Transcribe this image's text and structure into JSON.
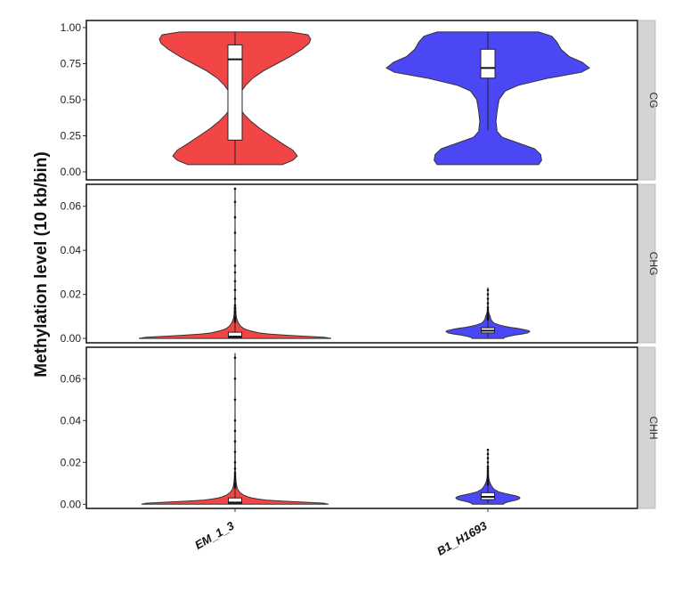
{
  "chart_data": {
    "type": "violin",
    "ylabel": "Methylation level (10 kb/bin)",
    "categories": [
      "EM_1_3",
      "B1_H1693"
    ],
    "colors": {
      "EM_1_3": "#f24646",
      "B1_H1693": "#4b47f5"
    },
    "facets": [
      {
        "name": "CG",
        "ylim": [
          0,
          1.0
        ],
        "yticks": [
          "0.00",
          "0.25",
          "0.50",
          "0.75",
          "1.00"
        ],
        "series": [
          {
            "name": "EM_1_3",
            "box": {
              "q1": 0.22,
              "median": 0.78,
              "q3": 0.88
            },
            "whisker": [
              0.05,
              0.97
            ],
            "outliers": [],
            "density": [
              [
                0.05,
                0.53
              ],
              [
                0.08,
                0.65
              ],
              [
                0.11,
                0.7
              ],
              [
                0.15,
                0.65
              ],
              [
                0.2,
                0.52
              ],
              [
                0.25,
                0.4
              ],
              [
                0.3,
                0.28
              ],
              [
                0.35,
                0.18
              ],
              [
                0.4,
                0.1
              ],
              [
                0.45,
                0.04
              ],
              [
                0.5,
                0.03
              ],
              [
                0.55,
                0.06
              ],
              [
                0.6,
                0.12
              ],
              [
                0.65,
                0.2
              ],
              [
                0.7,
                0.32
              ],
              [
                0.75,
                0.47
              ],
              [
                0.8,
                0.62
              ],
              [
                0.85,
                0.75
              ],
              [
                0.89,
                0.83
              ],
              [
                0.92,
                0.85
              ],
              [
                0.95,
                0.82
              ],
              [
                0.97,
                0.62
              ]
            ]
          },
          {
            "name": "B1_H1693",
            "box": {
              "q1": 0.65,
              "median": 0.72,
              "q3": 0.85
            },
            "whisker": [
              0.29,
              0.97
            ],
            "outliers": [],
            "density": [
              [
                0.05,
                0.5
              ],
              [
                0.08,
                0.53
              ],
              [
                0.12,
                0.52
              ],
              [
                0.16,
                0.46
              ],
              [
                0.2,
                0.3
              ],
              [
                0.24,
                0.14
              ],
              [
                0.28,
                0.09
              ],
              [
                0.35,
                0.08
              ],
              [
                0.42,
                0.09
              ],
              [
                0.5,
                0.11
              ],
              [
                0.56,
                0.17
              ],
              [
                0.6,
                0.3
              ],
              [
                0.65,
                0.6
              ],
              [
                0.69,
                0.92
              ],
              [
                0.72,
                1.0
              ],
              [
                0.76,
                0.93
              ],
              [
                0.8,
                0.8
              ],
              [
                0.85,
                0.72
              ],
              [
                0.9,
                0.68
              ],
              [
                0.94,
                0.63
              ],
              [
                0.97,
                0.5
              ]
            ]
          }
        ]
      },
      {
        "name": "CHG",
        "ylim": [
          -0.002,
          0.07
        ],
        "yticks": [
          "0.00",
          "0.02",
          "0.04",
          "0.06"
        ],
        "series": [
          {
            "name": "EM_1_3",
            "box": {
              "q1": 0.0003,
              "median": 0.0008,
              "q3": 0.0028
            },
            "whisker": [
              0.0,
              0.007
            ],
            "outliers": [
              0.0075,
              0.008,
              0.0085,
              0.009,
              0.0095,
              0.0105,
              0.0115,
              0.012,
              0.0125,
              0.0135,
              0.014,
              0.015,
              0.018,
              0.022,
              0.026,
              0.03,
              0.033,
              0.04,
              0.048,
              0.055,
              0.062,
              0.068
            ],
            "density": [
              [
                0,
                1.0
              ],
              [
                0.0005,
                0.93
              ],
              [
                0.001,
                0.72
              ],
              [
                0.0015,
                0.5
              ],
              [
                0.002,
                0.35
              ],
              [
                0.0025,
                0.25
              ],
              [
                0.003,
                0.2
              ],
              [
                0.0035,
                0.15
              ],
              [
                0.004,
                0.12
              ],
              [
                0.0045,
                0.09
              ],
              [
                0.005,
                0.075
              ],
              [
                0.0055,
                0.06
              ],
              [
                0.006,
                0.05
              ],
              [
                0.007,
                0.035
              ],
              [
                0.008,
                0.025
              ],
              [
                0.009,
                0.017
              ],
              [
                0.01,
                0.012
              ],
              [
                0.011,
                0.009
              ],
              [
                0.012,
                0.008
              ],
              [
                0.013,
                0.007
              ],
              [
                0.014,
                0.006
              ],
              [
                0.015,
                0.004
              ],
              [
                0.016,
                0.003
              ],
              [
                0.018,
                0.0025
              ],
              [
                0.02,
                0.002
              ],
              [
                0.025,
                0.0015
              ],
              [
                0.03,
                0.0012
              ],
              [
                0.04,
                0.001
              ],
              [
                0.05,
                0.0008
              ],
              [
                0.06,
                0.0007
              ],
              [
                0.068,
                0.0005
              ]
            ]
          },
          {
            "name": "B1_H1693",
            "box": {
              "q1": 0.0025,
              "median": 0.0035,
              "q3": 0.0048
            },
            "whisker": [
              0.0005,
              0.008
            ],
            "outliers": [
              0.0085,
              0.009,
              0.0095,
              0.01,
              0.011,
              0.012,
              0.013,
              0.014,
              0.016,
              0.018,
              0.02,
              0.022
            ],
            "density": [
              [
                0,
                0.26
              ],
              [
                0.0005,
                0.28
              ],
              [
                0.001,
                0.35
              ],
              [
                0.0015,
                0.45
              ],
              [
                0.002,
                0.57
              ],
              [
                0.0025,
                0.65
              ],
              [
                0.003,
                0.69
              ],
              [
                0.0035,
                0.68
              ],
              [
                0.004,
                0.6
              ],
              [
                0.0045,
                0.5
              ],
              [
                0.005,
                0.38
              ],
              [
                0.0055,
                0.28
              ],
              [
                0.006,
                0.2
              ],
              [
                0.007,
                0.1
              ],
              [
                0.008,
                0.065
              ],
              [
                0.009,
                0.045
              ],
              [
                0.01,
                0.038
              ],
              [
                0.011,
                0.022
              ],
              [
                0.012,
                0.012
              ],
              [
                0.013,
                0.008
              ],
              [
                0.014,
                0.006
              ],
              [
                0.016,
                0.004
              ],
              [
                0.018,
                0.003
              ],
              [
                0.02,
                0.002
              ],
              [
                0.022,
                0.0015
              ],
              [
                0.023,
                0.001
              ]
            ]
          }
        ]
      },
      {
        "name": "CHH",
        "ylim": [
          -0.002,
          0.075
        ],
        "yticks": [
          "0.00",
          "0.02",
          "0.04",
          "0.06"
        ],
        "series": [
          {
            "name": "EM_1_3",
            "box": {
              "q1": 0.0003,
              "median": 0.0008,
              "q3": 0.003
            },
            "whisker": [
              0.0,
              0.0075
            ],
            "outliers": [
              0.008,
              0.0085,
              0.009,
              0.0095,
              0.01,
              0.011,
              0.012,
              0.013,
              0.014,
              0.015,
              0.017,
              0.02,
              0.025,
              0.03,
              0.035,
              0.04,
              0.05,
              0.06,
              0.07
            ],
            "density": [
              [
                0,
                1.0
              ],
              [
                0.0005,
                0.95
              ],
              [
                0.001,
                0.72
              ],
              [
                0.0015,
                0.5
              ],
              [
                0.002,
                0.33
              ],
              [
                0.0025,
                0.24
              ],
              [
                0.003,
                0.18
              ],
              [
                0.0035,
                0.14
              ],
              [
                0.004,
                0.11
              ],
              [
                0.0045,
                0.085
              ],
              [
                0.005,
                0.07
              ],
              [
                0.0055,
                0.055
              ],
              [
                0.006,
                0.045
              ],
              [
                0.007,
                0.03
              ],
              [
                0.008,
                0.022
              ],
              [
                0.009,
                0.016
              ],
              [
                0.01,
                0.012
              ],
              [
                0.012,
                0.008
              ],
              [
                0.014,
                0.006
              ],
              [
                0.016,
                0.004
              ],
              [
                0.02,
                0.003
              ],
              [
                0.025,
                0.002
              ],
              [
                0.03,
                0.0015
              ],
              [
                0.04,
                0.0012
              ],
              [
                0.05,
                0.001
              ],
              [
                0.06,
                0.0008
              ],
              [
                0.072,
                0.0006
              ]
            ]
          },
          {
            "name": "B1_H1693",
            "box": {
              "q1": 0.0022,
              "median": 0.0035,
              "q3": 0.0055
            },
            "whisker": [
              0.0005,
              0.009
            ],
            "outliers": [
              0.0095,
              0.01,
              0.011,
              0.012,
              0.013,
              0.014,
              0.015,
              0.016,
              0.017,
              0.018,
              0.02,
              0.022,
              0.024,
              0.026
            ],
            "density": [
              [
                0,
                0.3
              ],
              [
                0.0005,
                0.32
              ],
              [
                0.001,
                0.38
              ],
              [
                0.0015,
                0.46
              ],
              [
                0.002,
                0.55
              ],
              [
                0.0025,
                0.6
              ],
              [
                0.003,
                0.62
              ],
              [
                0.0035,
                0.6
              ],
              [
                0.004,
                0.54
              ],
              [
                0.0045,
                0.45
              ],
              [
                0.005,
                0.35
              ],
              [
                0.0055,
                0.27
              ],
              [
                0.006,
                0.2
              ],
              [
                0.007,
                0.13
              ],
              [
                0.008,
                0.09
              ],
              [
                0.009,
                0.065
              ],
              [
                0.01,
                0.045
              ],
              [
                0.011,
                0.03
              ],
              [
                0.012,
                0.02
              ],
              [
                0.013,
                0.014
              ],
              [
                0.015,
                0.009
              ],
              [
                0.017,
                0.006
              ],
              [
                0.02,
                0.004
              ],
              [
                0.023,
                0.003
              ],
              [
                0.026,
                0.0015
              ]
            ]
          }
        ]
      }
    ]
  }
}
